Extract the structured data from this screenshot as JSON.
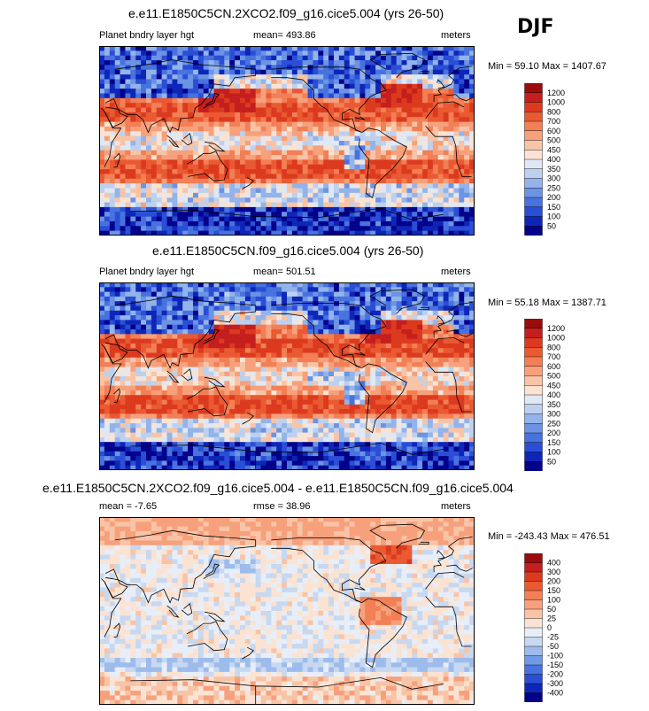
{
  "season": "DJF",
  "chart_data": [
    {
      "type": "heatmap",
      "title": "e.e11.E1850C5CN.2XCO2.f09_g16.cice5.004 (yrs 26-50)",
      "left_label": "Planet bndry layer hgt",
      "center_label": "mean= 493.86",
      "units": "meters",
      "minmax": "Min =  59.10 Max = 1407.67",
      "colorbar": {
        "levels": [
          "1200",
          "1000",
          "800",
          "700",
          "600",
          "500",
          "450",
          "400",
          "350",
          "300",
          "250",
          "200",
          "150",
          "100",
          "50"
        ],
        "colors": [
          "#9b0d0d",
          "#c41e1e",
          "#dc3a1f",
          "#ea5a32",
          "#f27f55",
          "#f6a07c",
          "#f8c4a7",
          "#fae3d2",
          "#dfe8f4",
          "#bdd1ee",
          "#93b4ea",
          "#6c93e4",
          "#4872de",
          "#2a4ed6",
          "#0e26b8",
          "#04028a"
        ]
      }
    },
    {
      "type": "heatmap",
      "title": "e.e11.E1850C5CN.f09_g16.cice5.004 (yrs 26-50)",
      "left_label": "Planet bndry layer hgt",
      "center_label": "mean= 501.51",
      "units": "meters",
      "minmax": "Min =  55.18 Max = 1387.71",
      "colorbar": {
        "levels": [
          "1200",
          "1000",
          "800",
          "700",
          "600",
          "500",
          "450",
          "400",
          "350",
          "300",
          "250",
          "200",
          "150",
          "100",
          "50"
        ],
        "colors": [
          "#9b0d0d",
          "#c41e1e",
          "#dc3a1f",
          "#ea5a32",
          "#f27f55",
          "#f6a07c",
          "#f8c4a7",
          "#fae3d2",
          "#dfe8f4",
          "#bdd1ee",
          "#93b4ea",
          "#6c93e4",
          "#4872de",
          "#2a4ed6",
          "#0e26b8",
          "#04028a"
        ]
      }
    },
    {
      "type": "heatmap",
      "title": "e.e11.E1850C5CN.2XCO2.f09_g16.cice5.004 - e.e11.E1850C5CN.f09_g16.cice5.004",
      "left_label": "mean =  -7.65",
      "center_label": "rmse =  38.96",
      "units": "meters",
      "minmax": "Min = -243.43 Max = 476.51",
      "colorbar": {
        "levels": [
          "400",
          "300",
          "200",
          "150",
          "100",
          "50",
          "25",
          "0",
          "-25",
          "-50",
          "-100",
          "-150",
          "-200",
          "-300",
          "-400"
        ],
        "colors": [
          "#9b0d0d",
          "#c41e1e",
          "#dc3a1f",
          "#ea5a32",
          "#f27f55",
          "#f6a07c",
          "#f8c4a7",
          "#fae3d2",
          "#e8eef8",
          "#c7d8f0",
          "#9dbcec",
          "#7099e6",
          "#4872de",
          "#2a4ed6",
          "#0e26b8",
          "#04028a"
        ]
      }
    }
  ]
}
